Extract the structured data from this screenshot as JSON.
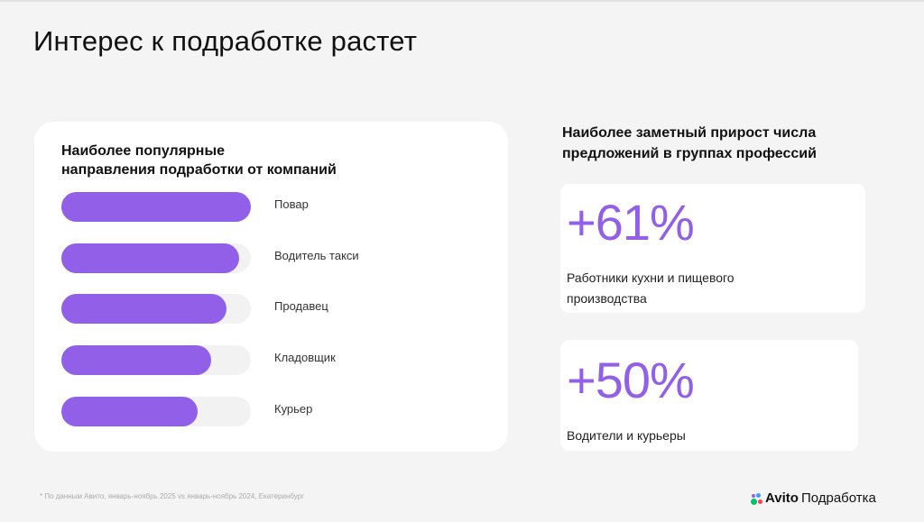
{
  "page": {
    "title": "Интерес к подработке растет"
  },
  "left_card": {
    "title_line1": "Наиболее популярные",
    "title_line2": "направления подработки от компаний"
  },
  "right_section": {
    "title_line1": "Наиболее заметный прирост числа",
    "title_line2": "предложений в группах профессий",
    "stats": [
      {
        "value": "+61%",
        "desc_line1": "Работники кухни и пищевого",
        "desc_line2": "производства"
      },
      {
        "value": "+50%",
        "desc_line1": "Водители и курьеры",
        "desc_line2": ""
      }
    ]
  },
  "footnote": "* По данным Авито, январь-ноябрь 2025 vs январь-ноябрь 2024, Екатеринбург",
  "brand": {
    "avito": "Avito",
    "product": "Подработка"
  },
  "colors": {
    "accent": "#9260e8",
    "track": "#f2f2f2",
    "background": "#f4f4f4"
  },
  "chart_data": [
    {
      "type": "bar",
      "orientation": "horizontal",
      "title": "Наиболее популярные направления подработки от компаний",
      "categories": [
        "Повар",
        "Водитель такси",
        "Продавец",
        "Кладовщик",
        "Курьер"
      ],
      "values": [
        100,
        94,
        87,
        79,
        72
      ],
      "xlabel": "",
      "ylabel": "",
      "units": "relative (no axis shown)",
      "grid": false,
      "legend": null
    },
    {
      "type": "table",
      "title": "Наиболее заметный прирост числа предложений в группах профессий",
      "rows": [
        {
          "group": "Работники кухни и пищевого производства",
          "growth": "+61%"
        },
        {
          "group": "Водители и курьеры",
          "growth": "+50%"
        }
      ]
    }
  ]
}
